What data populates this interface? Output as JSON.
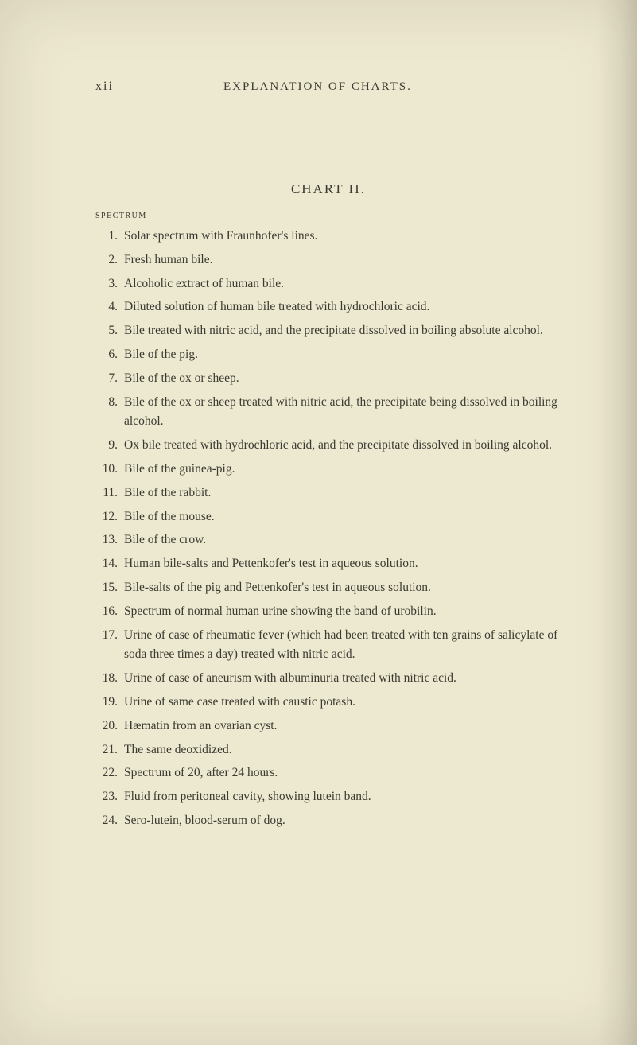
{
  "page_number_roman": "xii",
  "running_title": "EXPLANATION OF CHARTS.",
  "chart_title": "CHART II.",
  "spectrum_label": "SPECTRUM",
  "background_color": "#ede8d0",
  "text_color": "#3a3a30",
  "body_fontsize": 15.5,
  "title_fontsize": 17,
  "header_fontsize": 15,
  "items": [
    {
      "n": "1.",
      "text": "Solar spectrum with Fraunhofer's lines."
    },
    {
      "n": "2.",
      "text": "Fresh human bile."
    },
    {
      "n": "3.",
      "text": "Alcoholic extract of human bile."
    },
    {
      "n": "4.",
      "text": "Diluted solution of human bile treated with hydrochloric acid."
    },
    {
      "n": "5.",
      "text": "Bile treated with nitric acid, and the precipitate dissolved in boiling absolute alcohol."
    },
    {
      "n": "6.",
      "text": "Bile of the pig."
    },
    {
      "n": "7.",
      "text": "Bile of the ox or sheep."
    },
    {
      "n": "8.",
      "text": "Bile of the ox or sheep treated with nitric acid, the precipitate being dissolved in boiling alcohol."
    },
    {
      "n": "9.",
      "text": "Ox bile treated with hydrochloric acid, and the precipitate dissolved in boiling alcohol."
    },
    {
      "n": "10.",
      "text": "Bile of the guinea-pig."
    },
    {
      "n": "11.",
      "text": "Bile of the rabbit."
    },
    {
      "n": "12.",
      "text": "Bile of the mouse."
    },
    {
      "n": "13.",
      "text": "Bile of the crow."
    },
    {
      "n": "14.",
      "text": "Human bile-salts and Pettenkofer's test in aqueous solution."
    },
    {
      "n": "15.",
      "text": "Bile-salts of the pig and Pettenkofer's test in aqueous solution."
    },
    {
      "n": "16.",
      "text": "Spectrum of normal human urine showing the band of urobilin."
    },
    {
      "n": "17.",
      "text": "Urine of case of rheumatic fever (which had been treated with ten grains of salicylate of soda three times a day) treated with nitric acid."
    },
    {
      "n": "18.",
      "text": "Urine of case of aneurism with albuminuria treated with nitric acid."
    },
    {
      "n": "19.",
      "text": "Urine of same case treated with caustic potash."
    },
    {
      "n": "20.",
      "text": "Hæmatin from an ovarian cyst."
    },
    {
      "n": "21.",
      "text": "The same deoxidized."
    },
    {
      "n": "22.",
      "text": "Spectrum of 20, after 24 hours."
    },
    {
      "n": "23.",
      "text": "Fluid from peritoneal cavity, showing lutein band."
    },
    {
      "n": "24.",
      "text": "Sero-lutein, blood-serum of dog."
    }
  ]
}
